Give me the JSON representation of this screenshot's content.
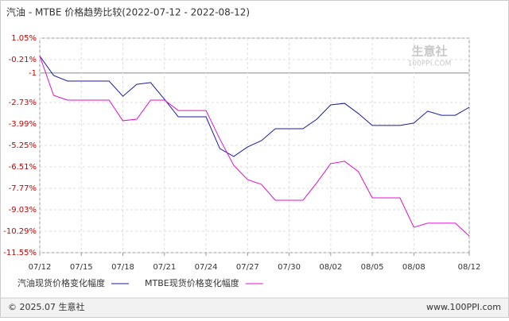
{
  "chart_data": {
    "type": "line",
    "title": "汽油 - MTBE 价格趋势比较(2022-07-12 - 2022-08-12)",
    "categories": [
      "07/12",
      null,
      null,
      "07/15",
      null,
      null,
      "07/18",
      null,
      null,
      "07/21",
      null,
      null,
      "07/24",
      null,
      null,
      "07/27",
      null,
      null,
      "07/30",
      null,
      null,
      "08/02",
      null,
      null,
      "08/05",
      null,
      null,
      "08/08",
      null,
      null,
      null,
      "08/12"
    ],
    "series": [
      {
        "name": "汽油现货价格变化幅度",
        "color": "#1a1aa6",
        "values": [
          0,
          -1.14,
          -1.47,
          -1.47,
          -1.47,
          -1.47,
          -2.36,
          -1.66,
          -1.56,
          -2.54,
          -3.57,
          -3.57,
          -3.57,
          -5.44,
          -5.9,
          -5.34,
          -4.97,
          -4.27,
          -4.27,
          -4.27,
          -3.71,
          -2.87,
          -2.78,
          -3.38,
          -4.08,
          -4.08,
          -4.08,
          -3.94,
          -3.24,
          -3.48,
          -3.48,
          -3.01
        ]
      },
      {
        "name": "MTBE现货价格变化幅度",
        "color": "#e010d0",
        "values": [
          0,
          -2.31,
          -2.59,
          -2.59,
          -2.59,
          -2.59,
          -3.8,
          -3.71,
          -2.59,
          -2.59,
          -3.2,
          -3.2,
          -3.2,
          -4.88,
          -6.42,
          -7.26,
          -7.54,
          -8.47,
          -8.47,
          -8.47,
          -7.44,
          -6.32,
          -6.18,
          -6.79,
          -8.33,
          -8.33,
          -8.33,
          -10.06,
          -9.82,
          -9.82,
          -9.82,
          -10.57
        ]
      }
    ],
    "ylim": [
      1.05,
      -11.55
    ],
    "yticks": [
      {
        "value": 1.05,
        "label": "1.05%"
      },
      {
        "value": -0.21,
        "label": "-0.21%"
      },
      -1,
      {
        "value": -2.73,
        "label": "-2.73%"
      },
      {
        "value": -3.99,
        "label": "-3.99%"
      },
      {
        "value": -5.25,
        "label": "-5.25%"
      },
      {
        "value": -6.51,
        "label": "-6.51%"
      },
      {
        "value": -7.77,
        "label": "-7.77%"
      },
      {
        "value": -9.03,
        "label": "-9.03%"
      },
      {
        "value": -10.29,
        "label": "-10.29%"
      },
      {
        "value": -11.55,
        "label": "-11.55%"
      }
    ],
    "grid": true,
    "watermark": {
      "name": "生意社",
      "site": "100PPI.COM"
    },
    "footer": {
      "left": "© 2025.07 生意社",
      "right": "www.100PPI.com"
    }
  }
}
